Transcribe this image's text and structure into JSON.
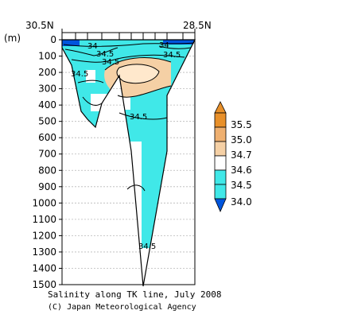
{
  "chart_data": {
    "type": "heatmap",
    "title": "",
    "ylabel": "(m)",
    "x_labels": {
      "left": "30.5N",
      "right": "28.5N"
    },
    "ylim": [
      0,
      1500
    ],
    "y_ticks": [
      0,
      100,
      200,
      300,
      400,
      500,
      600,
      700,
      800,
      900,
      1000,
      1100,
      1200,
      1300,
      1400,
      1500
    ],
    "grid": true,
    "colorbar": {
      "position": "right",
      "levels": [
        "35.5",
        "35.0",
        "34.7",
        "34.6",
        "34.5",
        "34.0"
      ],
      "colors": [
        "#e8902a",
        "#efb070",
        "#f5d0a5",
        "#ffffff",
        "#40e8e8",
        "#0055dd"
      ]
    },
    "contour_labels": [
      {
        "text": "34",
        "depth": 30
      },
      {
        "text": "34.5",
        "depth": 85
      },
      {
        "text": "34.5",
        "depth": 125
      },
      {
        "text": "34.5",
        "depth": 210
      },
      {
        "text": "34",
        "depth": 25
      },
      {
        "text": "34.5",
        "depth": 70
      },
      {
        "text": "34.5",
        "depth": 485
      },
      {
        "text": "34.5",
        "depth": 1235
      }
    ]
  },
  "caption": {
    "line1": "Salinity along TK line, July 2008",
    "line2": "(C) Japan Meteorological Agency"
  }
}
